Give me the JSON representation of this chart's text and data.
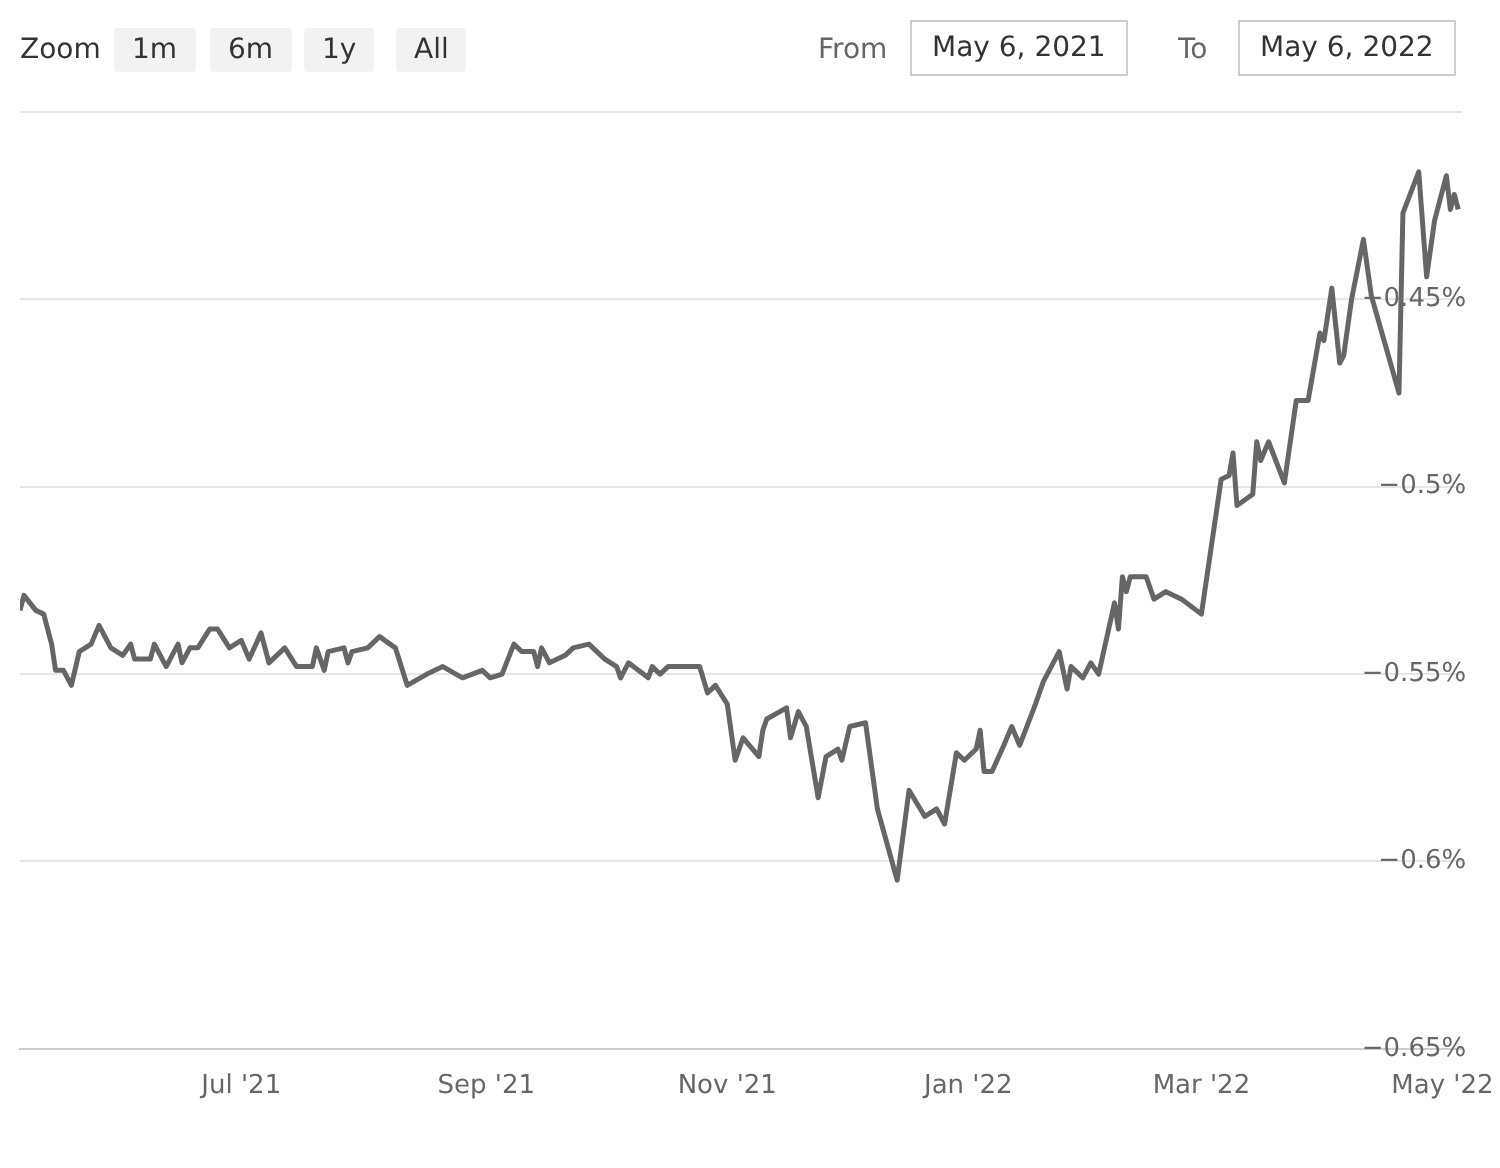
{
  "chart_data": {
    "type": "line",
    "annotations": [
      "Zoom",
      "1m",
      "6m",
      "1y",
      "All",
      "From",
      "May 6, 2021",
      "To",
      "May 6, 2022"
    ],
    "xlim": [
      "2021-05-06",
      "2022-05-06"
    ],
    "xticks": [
      {
        "value": "2021-07-01",
        "label": "Jul '21"
      },
      {
        "value": "2021-09-01",
        "label": "Sep '21"
      },
      {
        "value": "2021-11-01",
        "label": "Nov '21"
      },
      {
        "value": "2022-01-01",
        "label": "Jan '22"
      },
      {
        "value": "2022-03-01",
        "label": "Mar '22"
      },
      {
        "value": "2022-05-01",
        "label": "May '22"
      }
    ],
    "ylim": [
      -0.65,
      -0.4
    ],
    "yticks": [
      {
        "value": -0.65,
        "label": "−0.65%"
      },
      {
        "value": -0.6,
        "label": "−0.6%"
      },
      {
        "value": -0.55,
        "label": "−0.55%"
      },
      {
        "value": -0.5,
        "label": "−0.5%"
      },
      {
        "value": -0.45,
        "label": "−0.45%"
      },
      {
        "value": -0.4,
        "label": null
      }
    ],
    "grid": "y",
    "legend": false,
    "marker": "none",
    "line_style": "solid",
    "series": [
      {
        "color": "#666666",
        "x": [
          "2021-05-06",
          "2021-05-07",
          "2021-05-10",
          "2021-05-12",
          "2021-05-14",
          "2021-05-15",
          "2021-05-17",
          "2021-05-19",
          "2021-05-21",
          "2021-05-24",
          "2021-05-26",
          "2021-05-29",
          "2021-06-01",
          "2021-06-03",
          "2021-06-04",
          "2021-06-08",
          "2021-06-09",
          "2021-06-12",
          "2021-06-15",
          "2021-06-16",
          "2021-06-18",
          "2021-06-20",
          "2021-06-23",
          "2021-06-25",
          "2021-06-28",
          "2021-07-01",
          "2021-07-03",
          "2021-07-06",
          "2021-07-08",
          "2021-07-12",
          "2021-07-15",
          "2021-07-19",
          "2021-07-20",
          "2021-07-22",
          "2021-07-23",
          "2021-07-27",
          "2021-07-28",
          "2021-07-29",
          "2021-08-02",
          "2021-08-05",
          "2021-08-09",
          "2021-08-12",
          "2021-08-17",
          "2021-08-21",
          "2021-08-26",
          "2021-08-31",
          "2021-09-02",
          "2021-09-05",
          "2021-09-08",
          "2021-09-10",
          "2021-09-13",
          "2021-09-14",
          "2021-09-15",
          "2021-09-17",
          "2021-09-21",
          "2021-09-23",
          "2021-09-27",
          "2021-10-01",
          "2021-10-04",
          "2021-10-05",
          "2021-10-07",
          "2021-10-12",
          "2021-10-13",
          "2021-10-15",
          "2021-10-17",
          "2021-10-22",
          "2021-10-25",
          "2021-10-27",
          "2021-10-29",
          "2021-11-01",
          "2021-11-03",
          "2021-11-05",
          "2021-11-09",
          "2021-11-10",
          "2021-11-11",
          "2021-11-16",
          "2021-11-17",
          "2021-11-19",
          "2021-11-21",
          "2021-11-24",
          "2021-11-26",
          "2021-11-29",
          "2021-11-30",
          "2021-12-02",
          "2021-12-06",
          "2021-12-09",
          "2021-12-14",
          "2021-12-17",
          "2021-12-21",
          "2021-12-24",
          "2021-12-26",
          "2021-12-29",
          "2021-12-31",
          "2022-01-03",
          "2022-01-04",
          "2022-01-05",
          "2022-01-07",
          "2022-01-10",
          "2022-01-12",
          "2022-01-14",
          "2022-01-18",
          "2022-01-20",
          "2022-01-24",
          "2022-01-26",
          "2022-01-27",
          "2022-01-30",
          "2022-02-01",
          "2022-02-03",
          "2022-02-07",
          "2022-02-08",
          "2022-02-09",
          "2022-02-10",
          "2022-02-11",
          "2022-02-15",
          "2022-02-17",
          "2022-02-20",
          "2022-02-24",
          "2022-03-01",
          "2022-03-06",
          "2022-03-08",
          "2022-03-09",
          "2022-03-10",
          "2022-03-14",
          "2022-03-15",
          "2022-03-16",
          "2022-03-18",
          "2022-03-22",
          "2022-03-25",
          "2022-03-28",
          "2022-03-31",
          "2022-04-01",
          "2022-04-03",
          "2022-04-05",
          "2022-04-06",
          "2022-04-08",
          "2022-04-11",
          "2022-04-13",
          "2022-04-20",
          "2022-04-21",
          "2022-04-25",
          "2022-04-27",
          "2022-04-29",
          "2022-05-02",
          "2022-05-03",
          "2022-05-04",
          "2022-05-05"
        ],
        "values": [
          -0.533,
          -0.529,
          -0.533,
          -0.534,
          -0.542,
          -0.549,
          -0.549,
          -0.553,
          -0.544,
          -0.542,
          -0.537,
          -0.543,
          -0.545,
          -0.542,
          -0.546,
          -0.546,
          -0.542,
          -0.548,
          -0.542,
          -0.547,
          -0.543,
          -0.543,
          -0.538,
          -0.538,
          -0.543,
          -0.541,
          -0.546,
          -0.539,
          -0.547,
          -0.543,
          -0.548,
          -0.548,
          -0.543,
          -0.549,
          -0.544,
          -0.543,
          -0.547,
          -0.544,
          -0.543,
          -0.54,
          -0.543,
          -0.553,
          -0.55,
          -0.548,
          -0.551,
          -0.549,
          -0.551,
          -0.55,
          -0.542,
          -0.544,
          -0.544,
          -0.548,
          -0.543,
          -0.547,
          -0.545,
          -0.543,
          -0.542,
          -0.546,
          -0.548,
          -0.551,
          -0.547,
          -0.551,
          -0.548,
          -0.55,
          -0.548,
          -0.548,
          -0.548,
          -0.555,
          -0.553,
          -0.558,
          -0.573,
          -0.567,
          -0.572,
          -0.565,
          -0.562,
          -0.559,
          -0.567,
          -0.56,
          -0.564,
          -0.583,
          -0.572,
          -0.57,
          -0.573,
          -0.564,
          -0.563,
          -0.586,
          -0.605,
          -0.581,
          -0.588,
          -0.586,
          -0.59,
          -0.571,
          -0.573,
          -0.57,
          -0.565,
          -0.576,
          -0.576,
          -0.569,
          -0.564,
          -0.569,
          -0.558,
          -0.552,
          -0.544,
          -0.554,
          -0.548,
          -0.551,
          -0.547,
          -0.55,
          -0.531,
          -0.538,
          -0.524,
          -0.528,
          -0.524,
          -0.524,
          -0.53,
          -0.528,
          -0.53,
          -0.534,
          -0.498,
          -0.497,
          -0.491,
          -0.505,
          -0.502,
          -0.488,
          -0.493,
          -0.488,
          -0.499,
          -0.477,
          -0.477,
          -0.459,
          -0.461,
          -0.447,
          -0.467,
          -0.465,
          -0.45,
          -0.434,
          -0.449,
          -0.475,
          -0.427,
          -0.416,
          -0.444,
          -0.429,
          -0.417,
          -0.426,
          -0.422,
          -0.426
        ]
      }
    ]
  }
}
